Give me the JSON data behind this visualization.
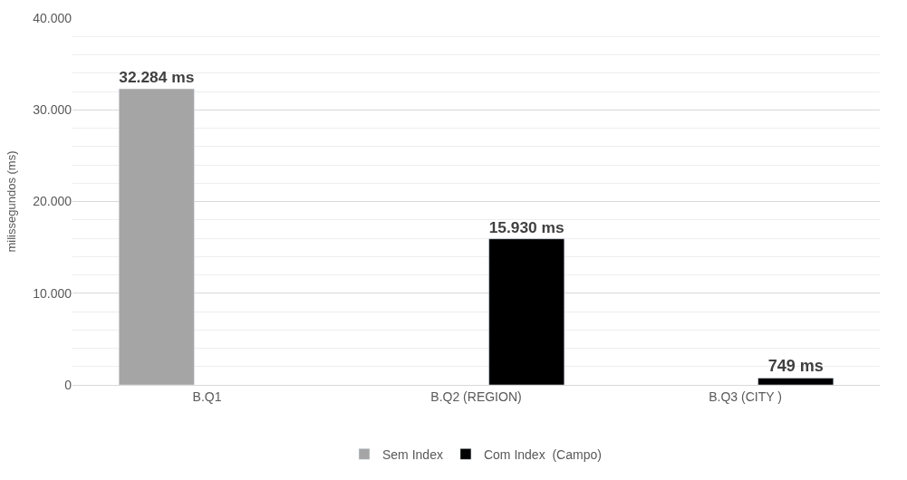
{
  "chart_data": {
    "type": "bar",
    "ylabel": "milissegundos (ms)",
    "categories": [
      "B.Q1",
      "B.Q2 (REGION)",
      "B.Q3 (CITY )"
    ],
    "series": [
      {
        "name": "Sem Index",
        "color": "#a5a5a5",
        "values": [
          32284,
          null,
          null
        ],
        "value_labels": [
          "32.284 ms",
          null,
          null
        ]
      },
      {
        "name": "Com Index  (Campo)",
        "color": "#000000",
        "values": [
          null,
          15930,
          749
        ],
        "value_labels": [
          null,
          "15.930 ms",
          "749 ms"
        ]
      }
    ],
    "ylim": [
      0,
      40000
    ],
    "yticks": [
      {
        "value": 0,
        "label": "0"
      },
      {
        "value": 10000,
        "label": "10.000"
      },
      {
        "value": 20000,
        "label": "20.000"
      },
      {
        "value": 30000,
        "label": "30.000"
      },
      {
        "value": 40000,
        "label": "40.000"
      }
    ],
    "grid": "y",
    "legend": "bottom"
  }
}
